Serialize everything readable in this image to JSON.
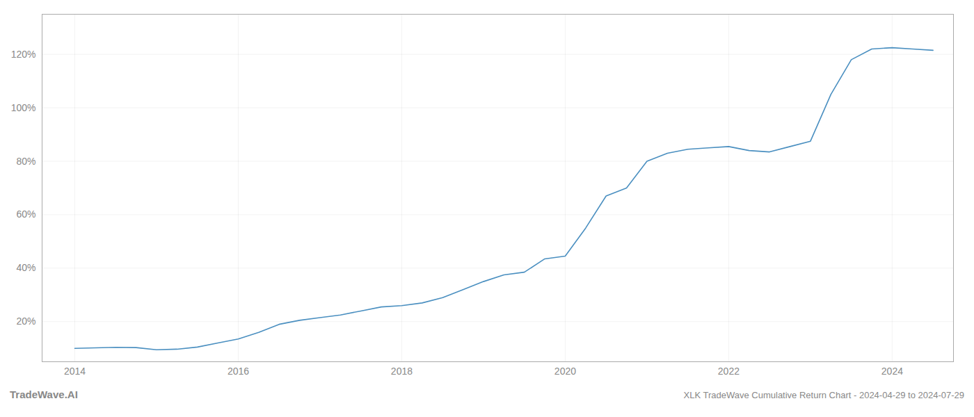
{
  "chart_data": {
    "type": "line",
    "title": "XLK TradeWave Cumulative Return Chart - 2024-04-29 to 2024-07-29",
    "annotations": [
      "TradeWave.AI"
    ],
    "color": "#4a8fc0",
    "x": [
      2014.0,
      2014.25,
      2014.5,
      2014.75,
      2015.0,
      2015.25,
      2015.5,
      2015.75,
      2016.0,
      2016.25,
      2016.5,
      2016.75,
      2017.0,
      2017.25,
      2017.5,
      2017.75,
      2018.0,
      2018.25,
      2018.5,
      2018.75,
      2019.0,
      2019.25,
      2019.5,
      2019.75,
      2020.0,
      2020.25,
      2020.5,
      2020.75,
      2021.0,
      2021.25,
      2021.5,
      2021.75,
      2022.0,
      2022.25,
      2022.5,
      2022.75,
      2023.0,
      2023.25,
      2023.5,
      2023.75,
      2024.0,
      2024.25,
      2024.5
    ],
    "values": [
      10.0,
      10.2,
      10.4,
      10.3,
      9.5,
      9.7,
      10.5,
      12.0,
      13.5,
      16.0,
      19.0,
      20.5,
      21.5,
      22.5,
      24.0,
      25.5,
      26.0,
      27.0,
      29.0,
      32.0,
      35.0,
      37.5,
      38.5,
      43.5,
      44.5,
      55.0,
      67.0,
      70.0,
      80.0,
      83.0,
      84.5,
      85.0,
      85.5,
      84.0,
      83.5,
      85.5,
      87.5,
      105.0,
      118.0,
      122.0,
      122.5,
      122.0,
      121.5
    ],
    "xlim": [
      2013.6,
      2024.75
    ],
    "ylim": [
      5,
      135
    ],
    "xticks": [
      2014,
      2016,
      2018,
      2020,
      2022,
      2024
    ],
    "yticks": [
      {
        "value": 20,
        "label": "20%"
      },
      {
        "value": 40,
        "label": "40%"
      },
      {
        "value": 60,
        "label": "60%"
      },
      {
        "value": 80,
        "label": "80%"
      },
      {
        "value": 100,
        "label": "100%"
      },
      {
        "value": 120,
        "label": "120%"
      }
    ],
    "grid": true
  }
}
